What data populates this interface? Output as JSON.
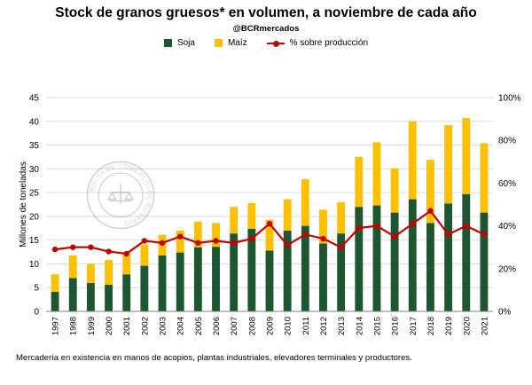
{
  "chart_data": {
    "type": "bar",
    "title": "Stock de granos gruesos*  en volumen, a noviembre de cada año",
    "subtitle": "@BCRmercados",
    "ylabel": "Millones de toneladas",
    "ylim": [
      0,
      45
    ],
    "y_ticks": [
      0,
      5,
      10,
      15,
      20,
      25,
      30,
      35,
      40,
      45
    ],
    "y2lim": [
      0,
      1.0
    ],
    "y2_ticks": [
      "0%",
      "20%",
      "40%",
      "60%",
      "80%",
      "100%"
    ],
    "categories": [
      "1997",
      "1998",
      "1999",
      "2000",
      "2001",
      "2002",
      "2003",
      "2004",
      "2005",
      "2006",
      "2007",
      "2008",
      "2009",
      "2010",
      "2011",
      "2012",
      "2013",
      "2014",
      "2015",
      "2016",
      "2017",
      "2018",
      "2019",
      "2020",
      "2021"
    ],
    "stacked": true,
    "series": [
      {
        "name": "Soja",
        "type": "bar",
        "color": "#1e5631",
        "values": [
          4.1,
          7.0,
          6.0,
          5.6,
          7.8,
          9.6,
          11.8,
          12.4,
          13.5,
          13.6,
          16.4,
          17.4,
          12.8,
          17.0,
          18.0,
          14.3,
          16.4,
          22.0,
          22.3,
          20.8,
          23.6,
          18.6,
          22.7,
          24.7,
          20.8
        ]
      },
      {
        "name": "Maíz",
        "type": "bar",
        "color": "#ffc000",
        "values": [
          3.7,
          4.8,
          4.0,
          5.2,
          4.2,
          4.5,
          4.3,
          4.6,
          5.4,
          5.0,
          5.6,
          5.4,
          6.5,
          6.6,
          9.8,
          7.1,
          6.6,
          10.5,
          13.3,
          9.3,
          16.4,
          13.3,
          16.5,
          16.0,
          14.6
        ]
      },
      {
        "name": "% sobre producción",
        "type": "line",
        "axis": "secondary",
        "color": "#c00000",
        "values": [
          0.29,
          0.3,
          0.3,
          0.28,
          0.27,
          0.33,
          0.32,
          0.35,
          0.32,
          0.33,
          0.32,
          0.34,
          0.41,
          0.31,
          0.36,
          0.34,
          0.3,
          0.39,
          0.4,
          0.35,
          0.41,
          0.47,
          0.36,
          0.4,
          0.36
        ]
      }
    ],
    "legend_position": "top",
    "grid": "horizontal"
  },
  "legend": {
    "soja": "Soja",
    "maiz": "Maíz",
    "pct": "% sobre producción"
  },
  "note": "Mercadería en existencia en manos de acopios, plantas industriales, elevadores terminales y productores.",
  "colors": {
    "soja": "#1e5631",
    "maiz": "#ffc000",
    "line": "#c00000",
    "grid": "#d9d9d9"
  },
  "watermark": "BOLSA DE COMERCIO DE ROSARIO"
}
